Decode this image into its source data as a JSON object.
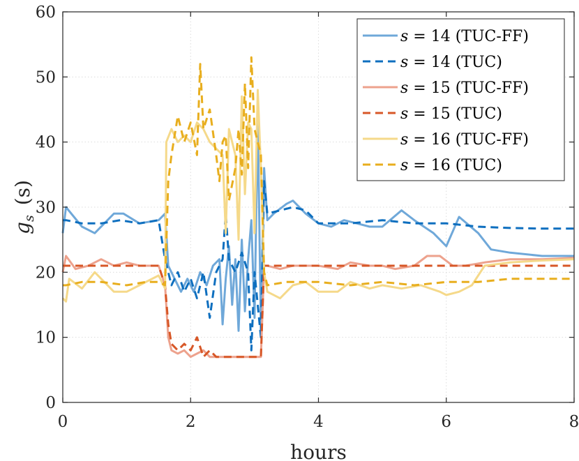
{
  "chart_data": {
    "type": "line",
    "title": "",
    "xlabel": "hours",
    "ylabel_main": "g",
    "ylabel_sub": "s",
    "ylabel_unit": "(s)",
    "xlim": [
      0,
      8
    ],
    "ylim": [
      0,
      60
    ],
    "xticks": [
      0,
      2,
      4,
      6,
      8
    ],
    "yticks": [
      0,
      10,
      20,
      30,
      40,
      50,
      60
    ],
    "grid": true,
    "legend_position": "top-right",
    "series": [
      {
        "name": "s = 14 (TUC-FF)",
        "legend_var": "s",
        "legend_eq": " = 14 ",
        "legend_tag": "(TUC-FF)",
        "color": "#6fa8d9",
        "dash": "solid",
        "x": [
          0,
          0.05,
          0.3,
          0.5,
          0.8,
          0.95,
          1.2,
          1.5,
          1.6,
          1.65,
          1.75,
          1.85,
          1.95,
          2.05,
          2.15,
          2.25,
          2.35,
          2.45,
          2.5,
          2.55,
          2.6,
          2.65,
          2.7,
          2.75,
          2.8,
          2.85,
          2.9,
          2.95,
          3.0,
          3.05,
          3.1,
          3.15,
          3.2,
          3.3,
          3.5,
          3.6,
          3.8,
          4.0,
          4.2,
          4.4,
          4.6,
          4.8,
          5.0,
          5.3,
          5.5,
          5.8,
          6.0,
          6.2,
          6.5,
          6.7,
          7.0,
          7.5,
          8.0
        ],
        "y": [
          26,
          30,
          27,
          26,
          29,
          29,
          27.5,
          28,
          29,
          21,
          19,
          17,
          19,
          17,
          20,
          18,
          21,
          22,
          12,
          19,
          24,
          15,
          22,
          11,
          25,
          14,
          22,
          28,
          13,
          44,
          11,
          36,
          28,
          29,
          30.5,
          31,
          29,
          27.5,
          27,
          28,
          27.5,
          27,
          27,
          29.5,
          28,
          26,
          24,
          28.5,
          26,
          23.5,
          23,
          22.5,
          22.5
        ]
      },
      {
        "name": "s = 14 (TUC)",
        "legend_var": "s",
        "legend_eq": " = 14 ",
        "legend_tag": "(TUC)",
        "color": "#0e6fbf",
        "dash": "dashed",
        "x": [
          0,
          0.05,
          0.3,
          0.6,
          0.9,
          1.2,
          1.5,
          1.6,
          1.7,
          1.8,
          1.9,
          2.0,
          2.1,
          2.2,
          2.3,
          2.4,
          2.5,
          2.55,
          2.6,
          2.7,
          2.8,
          2.9,
          2.95,
          3.0,
          3.1,
          3.15,
          3.2,
          3.4,
          3.6,
          3.8,
          4.0,
          4.5,
          5.0,
          5.5,
          6.0,
          6.5,
          7.0,
          7.5,
          8.0
        ],
        "y": [
          28,
          28,
          27.5,
          27.5,
          28,
          27.5,
          28,
          22,
          18,
          20,
          17,
          19,
          16,
          20,
          13,
          20,
          22,
          29,
          22,
          20,
          23,
          20,
          8,
          20,
          10,
          34,
          29,
          29.5,
          30,
          29.5,
          27.5,
          27.5,
          28,
          27.5,
          27.5,
          27,
          26.8,
          26.7,
          26.7
        ]
      },
      {
        "name": "s = 15 (TUC-FF)",
        "legend_var": "s",
        "legend_eq": " = 15 ",
        "legend_tag": "(TUC-FF)",
        "color": "#eda28d",
        "dash": "solid",
        "x": [
          0,
          0.05,
          0.2,
          0.4,
          0.6,
          0.8,
          1.0,
          1.2,
          1.5,
          1.6,
          1.65,
          1.7,
          1.8,
          1.9,
          2.0,
          2.1,
          2.2,
          2.3,
          2.4,
          2.6,
          2.8,
          3.0,
          3.1,
          3.15,
          3.2,
          3.4,
          3.6,
          3.8,
          4.0,
          4.3,
          4.5,
          4.8,
          5.0,
          5.2,
          5.5,
          5.7,
          5.9,
          6.1,
          6.3,
          6.6,
          7.0,
          7.5,
          8.0
        ],
        "y": [
          20,
          22.5,
          20.5,
          21,
          22,
          21,
          21.5,
          21,
          21,
          18,
          10,
          8,
          7.5,
          8,
          7,
          7.5,
          8,
          7,
          7,
          7,
          7,
          7,
          7,
          21,
          21,
          20.5,
          21,
          21,
          21,
          20.5,
          21.5,
          21,
          21,
          20.5,
          21,
          22.5,
          22.5,
          21,
          21,
          21.5,
          22,
          22,
          22.2
        ]
      },
      {
        "name": "s = 15 (TUC)",
        "legend_var": "s",
        "legend_eq": " = 15 ",
        "legend_tag": "(TUC)",
        "color": "#d75727",
        "dash": "dashed",
        "x": [
          0,
          0.05,
          0.5,
          1.0,
          1.5,
          1.6,
          1.65,
          1.7,
          1.8,
          1.9,
          2.0,
          2.1,
          2.2,
          2.3,
          2.4,
          2.6,
          2.8,
          3.0,
          3.1,
          3.15,
          3.5,
          4.0,
          5.0,
          6.0,
          7.0,
          8.0
        ],
        "y": [
          21,
          21,
          21,
          21,
          21,
          18,
          12,
          9,
          8,
          9,
          8,
          10,
          7,
          8,
          7,
          7,
          7,
          7,
          7,
          21,
          21,
          21,
          21,
          21,
          21,
          21
        ]
      },
      {
        "name": "s = 16 (TUC-FF)",
        "legend_var": "s",
        "legend_eq": " = 16 ",
        "legend_tag": "(TUC-FF)",
        "color": "#f5d98a",
        "dash": "solid",
        "x": [
          0,
          0.05,
          0.1,
          0.3,
          0.5,
          0.8,
          1.0,
          1.2,
          1.5,
          1.6,
          1.62,
          1.7,
          1.8,
          1.9,
          2.0,
          2.1,
          2.2,
          2.3,
          2.4,
          2.5,
          2.55,
          2.6,
          2.7,
          2.75,
          2.8,
          2.85,
          2.9,
          2.95,
          3.0,
          3.05,
          3.1,
          3.15,
          3.2,
          3.4,
          3.6,
          3.8,
          4.0,
          4.3,
          4.5,
          4.8,
          5.0,
          5.3,
          5.6,
          5.9,
          6.0,
          6.2,
          6.4,
          6.6,
          7.0,
          7.5,
          8.0
        ],
        "y": [
          16,
          15.5,
          19,
          17.5,
          20,
          17,
          17,
          18,
          19.5,
          17.5,
          40,
          42,
          40,
          41,
          40,
          43,
          42,
          40,
          39,
          38,
          26,
          42,
          38,
          25,
          47,
          32,
          43,
          42,
          26,
          48,
          36,
          20,
          17,
          16,
          18,
          18.5,
          17,
          17,
          18.5,
          17.5,
          18,
          17.5,
          18,
          17,
          16.5,
          17,
          18,
          21,
          21.5,
          21.8,
          22
        ]
      },
      {
        "name": "s = 16 (TUC)",
        "legend_var": "s",
        "legend_eq": " = 16 ",
        "legend_tag": "(TUC)",
        "color": "#e8ae1e",
        "dash": "dashed",
        "x": [
          0,
          0.05,
          0.3,
          0.6,
          1.0,
          1.3,
          1.5,
          1.6,
          1.65,
          1.7,
          1.8,
          1.9,
          2.0,
          2.1,
          2.15,
          2.2,
          2.3,
          2.4,
          2.45,
          2.5,
          2.55,
          2.6,
          2.7,
          2.75,
          2.8,
          2.85,
          2.9,
          2.95,
          3.0,
          3.05,
          3.1,
          3.15,
          3.2,
          3.5,
          4.0,
          4.5,
          5.0,
          5.5,
          6.0,
          6.5,
          7.0,
          7.5,
          8.0
        ],
        "y": [
          18,
          18,
          18.5,
          18.5,
          18,
          18.5,
          18.5,
          18,
          34,
          38,
          44,
          40,
          43,
          38,
          52,
          42,
          45,
          38,
          34,
          40,
          41,
          31,
          36,
          42,
          35,
          49,
          36,
          53,
          42,
          40,
          38,
          20,
          18,
          18.5,
          18.5,
          18,
          18.5,
          18,
          18.5,
          18.5,
          19,
          19,
          19
        ]
      }
    ]
  }
}
